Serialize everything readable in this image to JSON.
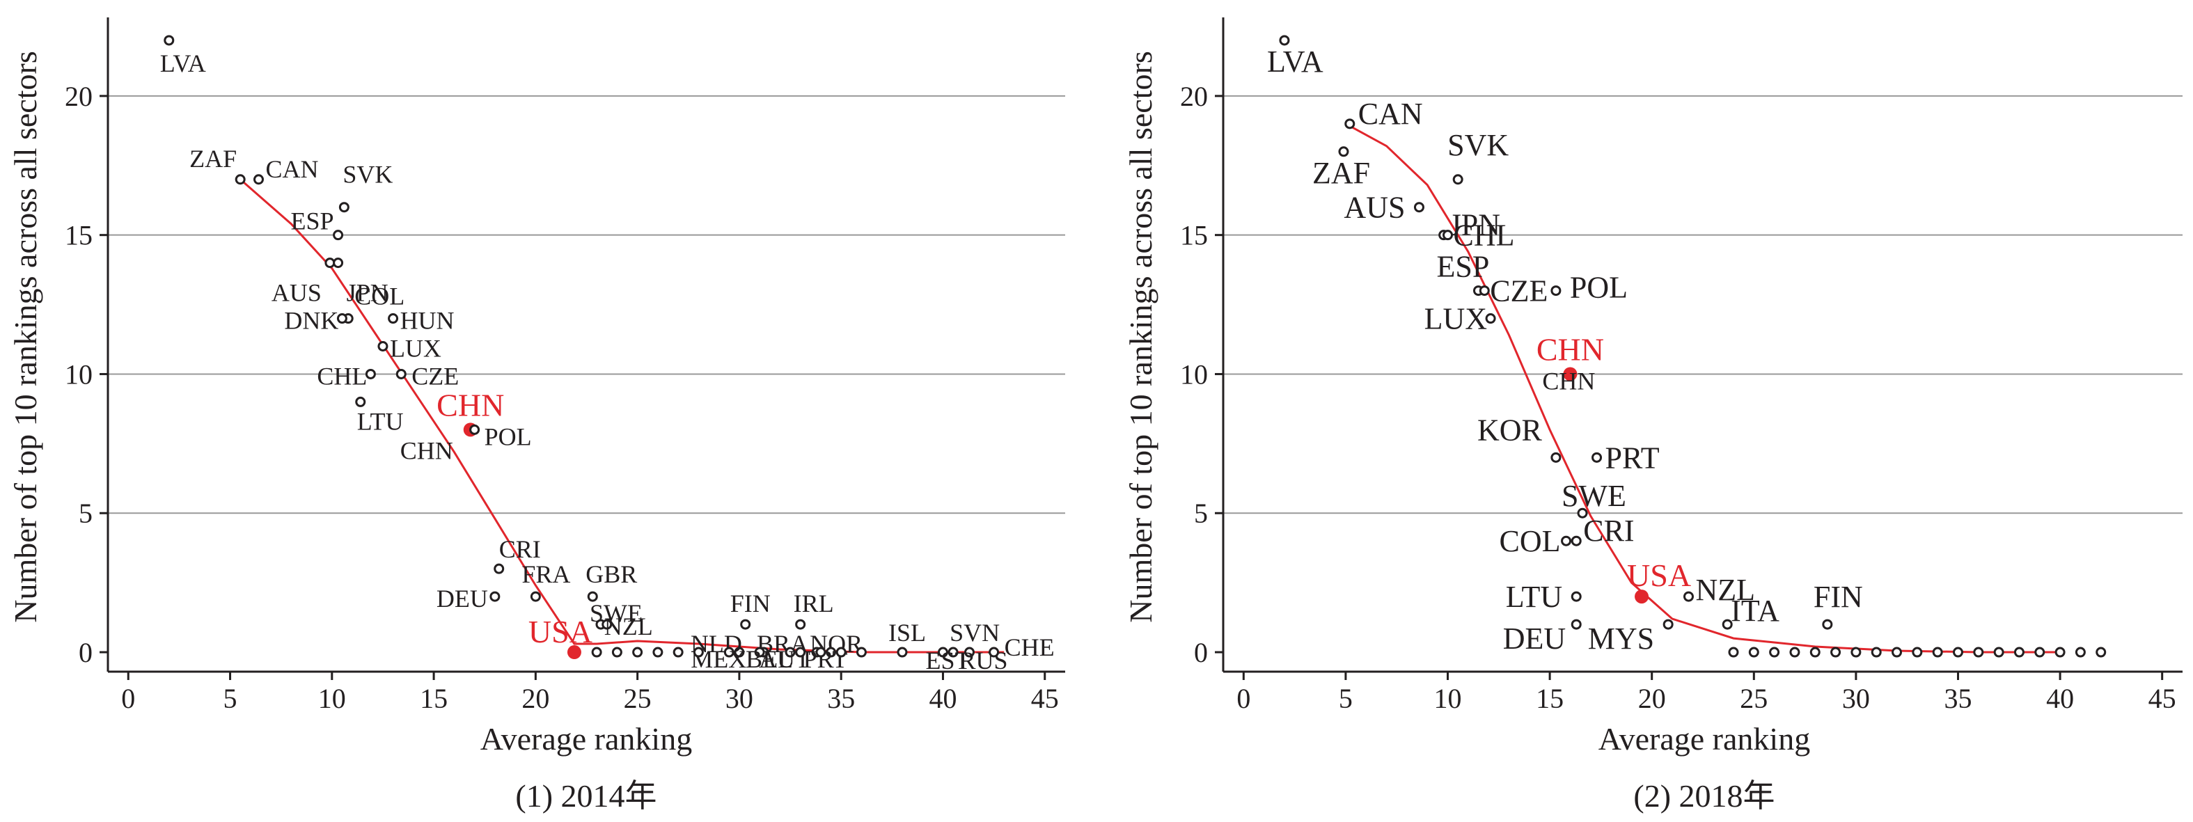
{
  "chart_data": [
    {
      "type": "scatter",
      "caption": "(1) 2014年",
      "xlabel": "Average ranking",
      "ylabel": "Number of top 10 rankings across all sectors",
      "xlim": [
        -1,
        46
      ],
      "ylim": [
        -0.7,
        22.7
      ],
      "xticks": [
        0,
        5,
        10,
        15,
        20,
        25,
        30,
        35,
        40,
        45
      ],
      "yticks": [
        0,
        5,
        10,
        15,
        20
      ],
      "grid": "horizontal",
      "colors": {
        "points": "#231f20",
        "highlight": "#e1262c",
        "fit_line": "#e1262c",
        "grid": "#999999"
      },
      "points": [
        {
          "label": "LVA",
          "x": 2.0,
          "y": 22
        },
        {
          "label": "ZAF",
          "x": 5.5,
          "y": 17
        },
        {
          "label": "CAN",
          "x": 6.4,
          "y": 17
        },
        {
          "label": "SVK",
          "x": 10.6,
          "y": 16
        },
        {
          "label": "ESP",
          "x": 10.3,
          "y": 15
        },
        {
          "label": "AUS",
          "x": 9.9,
          "y": 14
        },
        {
          "label": "JPN",
          "x": 10.3,
          "y": 14
        },
        {
          "label": "COL",
          "x": 10.8,
          "y": 12
        },
        {
          "label": "DNK",
          "x": 10.5,
          "y": 12
        },
        {
          "label": "HUN",
          "x": 13.0,
          "y": 12
        },
        {
          "label": "LUX",
          "x": 12.5,
          "y": 11
        },
        {
          "label": "CHL",
          "x": 11.9,
          "y": 10
        },
        {
          "label": "CZE",
          "x": 13.4,
          "y": 10
        },
        {
          "label": "LTU",
          "x": 11.4,
          "y": 9
        },
        {
          "label": "CHN",
          "x": 16.8,
          "y": 8,
          "highlight": true
        },
        {
          "label": "POL",
          "x": 17.0,
          "y": 8
        },
        {
          "label": "CRI",
          "x": 18.2,
          "y": 3
        },
        {
          "label": "DEU",
          "x": 18.0,
          "y": 2
        },
        {
          "label": "FRA",
          "x": 20.0,
          "y": 2
        },
        {
          "label": "GBR",
          "x": 22.8,
          "y": 2
        },
        {
          "label": "SWE",
          "x": 23.2,
          "y": 1
        },
        {
          "label": "NZL",
          "x": 23.5,
          "y": 1
        },
        {
          "label": "USA",
          "x": 21.9,
          "y": 0,
          "highlight": true
        },
        {
          "label": "FIN",
          "x": 30.3,
          "y": 1
        },
        {
          "label": "IRL",
          "x": 33.0,
          "y": 1
        },
        {
          "label": "NLD",
          "x": 30.0,
          "y": 0
        },
        {
          "label": "BRA",
          "x": 31.2,
          "y": 0
        },
        {
          "label": "NOR",
          "x": 33.8,
          "y": 0
        },
        {
          "label": "MEX",
          "x": 29.5,
          "y": 0
        },
        {
          "label": "BEL",
          "x": 31.0,
          "y": 0
        },
        {
          "label": "AUT",
          "x": 32.5,
          "y": 0
        },
        {
          "label": "PRT",
          "x": 34.5,
          "y": 0
        },
        {
          "label": "ISL",
          "x": 38.0,
          "y": 0
        },
        {
          "label": "SVN",
          "x": 40.5,
          "y": 0
        },
        {
          "label": "EST",
          "x": 40.0,
          "y": 0
        },
        {
          "label": "RUS",
          "x": 41.3,
          "y": 0
        },
        {
          "label": "CHE",
          "x": 42.5,
          "y": 0
        },
        {
          "label": "",
          "x": 23.0,
          "y": 0
        },
        {
          "label": "",
          "x": 24.0,
          "y": 0
        },
        {
          "label": "",
          "x": 25.0,
          "y": 0
        },
        {
          "label": "",
          "x": 26.0,
          "y": 0
        },
        {
          "label": "",
          "x": 27.0,
          "y": 0
        },
        {
          "label": "",
          "x": 28.0,
          "y": 0
        },
        {
          "label": "",
          "x": 33.0,
          "y": 0
        },
        {
          "label": "",
          "x": 34.0,
          "y": 0
        },
        {
          "label": "",
          "x": 35.0,
          "y": 0
        },
        {
          "label": "",
          "x": 36.0,
          "y": 0
        }
      ],
      "fit_line": [
        {
          "x": 5.5,
          "y": 17
        },
        {
          "x": 8,
          "y": 15.4
        },
        {
          "x": 10,
          "y": 13.8
        },
        {
          "x": 12,
          "y": 11.6
        },
        {
          "x": 14,
          "y": 9.4
        },
        {
          "x": 16,
          "y": 7.2
        },
        {
          "x": 18,
          "y": 4.8
        },
        {
          "x": 20,
          "y": 2.4
        },
        {
          "x": 21.9,
          "y": 0.3
        },
        {
          "x": 23,
          "y": 0.3
        },
        {
          "x": 25,
          "y": 0.4
        },
        {
          "x": 28,
          "y": 0.3
        },
        {
          "x": 32,
          "y": 0.1
        },
        {
          "x": 36,
          "y": 0
        },
        {
          "x": 40,
          "y": 0
        },
        {
          "x": 43,
          "y": 0
        }
      ]
    },
    {
      "type": "scatter",
      "caption": "(2) 2018年",
      "xlabel": "Average ranking",
      "ylabel": "Number of top 10 rankings across all sectors",
      "xlim": [
        -1,
        46
      ],
      "ylim": [
        -0.7,
        22.7
      ],
      "xticks": [
        0,
        5,
        10,
        15,
        20,
        25,
        30,
        35,
        40,
        45
      ],
      "yticks": [
        0,
        5,
        10,
        15,
        20
      ],
      "grid": "horizontal",
      "colors": {
        "points": "#231f20",
        "highlight": "#e1262c",
        "fit_line": "#e1262c",
        "grid": "#999999"
      },
      "points": [
        {
          "label": "LVA",
          "x": 2.0,
          "y": 22
        },
        {
          "label": "CAN",
          "x": 5.2,
          "y": 19
        },
        {
          "label": "ZAF",
          "x": 4.9,
          "y": 18
        },
        {
          "label": "SVK",
          "x": 10.5,
          "y": 17
        },
        {
          "label": "AUS",
          "x": 8.6,
          "y": 16
        },
        {
          "label": "JPN",
          "x": 9.8,
          "y": 15
        },
        {
          "label": "CHL",
          "x": 10.0,
          "y": 15
        },
        {
          "label": "ESP",
          "x": 11.5,
          "y": 13
        },
        {
          "label": "CZE",
          "x": 11.8,
          "y": 13
        },
        {
          "label": "POL",
          "x": 15.3,
          "y": 13
        },
        {
          "label": "LUX",
          "x": 12.1,
          "y": 12
        },
        {
          "label": "CHN",
          "x": 16.0,
          "y": 10,
          "highlight": true
        },
        {
          "label": "KOR",
          "x": 15.3,
          "y": 7
        },
        {
          "label": "PRT",
          "x": 17.3,
          "y": 7
        },
        {
          "label": "SWE",
          "x": 16.6,
          "y": 5
        },
        {
          "label": "COL",
          "x": 15.8,
          "y": 4
        },
        {
          "label": "CRI",
          "x": 16.3,
          "y": 4
        },
        {
          "label": "USA",
          "x": 19.5,
          "y": 2,
          "highlight": true
        },
        {
          "label": "NZL",
          "x": 21.8,
          "y": 2
        },
        {
          "label": "LTU",
          "x": 16.3,
          "y": 2
        },
        {
          "label": "DEU",
          "x": 16.3,
          "y": 1
        },
        {
          "label": "MYS",
          "x": 20.8,
          "y": 1
        },
        {
          "label": "ITA",
          "x": 23.7,
          "y": 1
        },
        {
          "label": "FIN",
          "x": 28.6,
          "y": 1
        },
        {
          "label": "",
          "x": 24.0,
          "y": 0
        },
        {
          "label": "",
          "x": 25.0,
          "y": 0
        },
        {
          "label": "",
          "x": 26.0,
          "y": 0
        },
        {
          "label": "",
          "x": 27.0,
          "y": 0
        },
        {
          "label": "",
          "x": 28.0,
          "y": 0
        },
        {
          "label": "",
          "x": 29.0,
          "y": 0
        },
        {
          "label": "",
          "x": 30.0,
          "y": 0
        },
        {
          "label": "",
          "x": 31.0,
          "y": 0
        },
        {
          "label": "",
          "x": 32.0,
          "y": 0
        },
        {
          "label": "",
          "x": 33.0,
          "y": 0
        },
        {
          "label": "",
          "x": 34.0,
          "y": 0
        },
        {
          "label": "",
          "x": 35.0,
          "y": 0
        },
        {
          "label": "",
          "x": 36.0,
          "y": 0
        },
        {
          "label": "",
          "x": 37.0,
          "y": 0
        },
        {
          "label": "",
          "x": 38.0,
          "y": 0
        },
        {
          "label": "",
          "x": 39.0,
          "y": 0
        },
        {
          "label": "",
          "x": 40.0,
          "y": 0
        },
        {
          "label": "",
          "x": 41.0,
          "y": 0
        },
        {
          "label": "",
          "x": 42.0,
          "y": 0
        }
      ],
      "fit_line": [
        {
          "x": 5,
          "y": 19
        },
        {
          "x": 7,
          "y": 18.2
        },
        {
          "x": 9,
          "y": 16.8
        },
        {
          "x": 11,
          "y": 14.4
        },
        {
          "x": 13,
          "y": 11.4
        },
        {
          "x": 15,
          "y": 8.0
        },
        {
          "x": 17,
          "y": 4.9
        },
        {
          "x": 19,
          "y": 2.5
        },
        {
          "x": 21,
          "y": 1.2
        },
        {
          "x": 24,
          "y": 0.5
        },
        {
          "x": 28,
          "y": 0.2
        },
        {
          "x": 32,
          "y": 0.05
        },
        {
          "x": 36,
          "y": 0
        },
        {
          "x": 40,
          "y": 0
        }
      ]
    }
  ]
}
